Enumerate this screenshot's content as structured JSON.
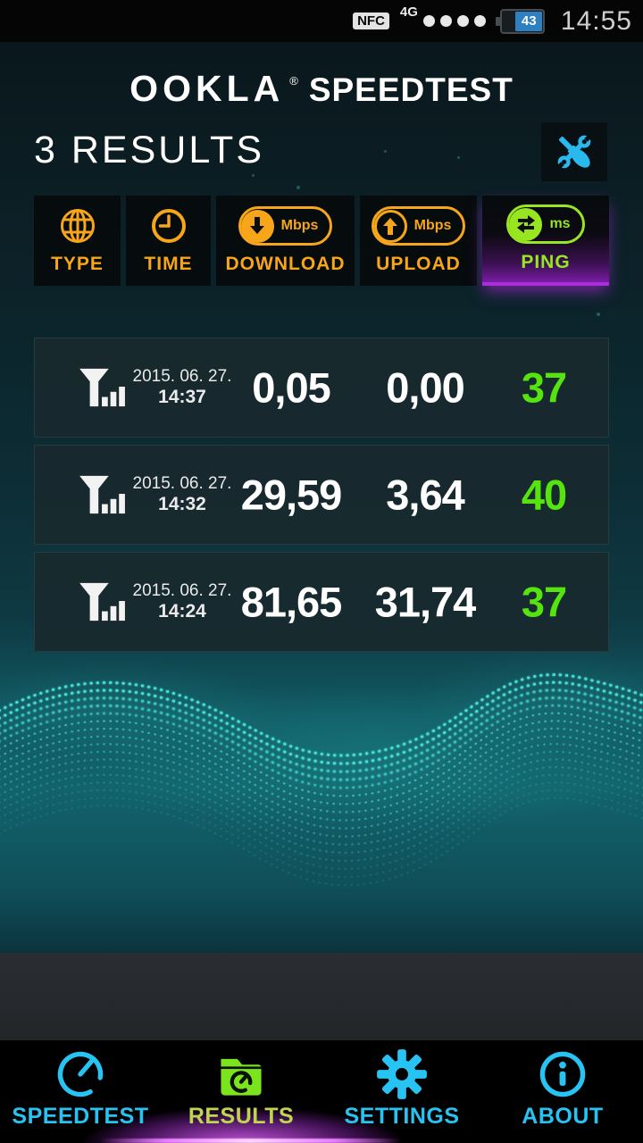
{
  "status_bar": {
    "nfc_label": "NFC",
    "network_label": "4G",
    "signal_dots": 4,
    "battery_percent": "43",
    "time": "14:55"
  },
  "header": {
    "brand": "OOKLA",
    "registered_mark": "®",
    "product": "SPEEDTEST"
  },
  "page": {
    "title": "3 RESULTS",
    "tools_icon": "wrench-screwdriver-icon"
  },
  "sort_bar": {
    "columns": [
      {
        "name": "type",
        "label": "TYPE",
        "icon": "globe-icon"
      },
      {
        "name": "time",
        "label": "TIME",
        "icon": "clock-icon"
      },
      {
        "name": "download",
        "label": "DOWNLOAD",
        "unit": "Mbps",
        "icon": "download-arrow-icon"
      },
      {
        "name": "upload",
        "label": "UPLOAD",
        "unit": "Mbps",
        "icon": "upload-arrow-icon"
      },
      {
        "name": "ping",
        "label": "PING",
        "unit": "ms",
        "icon": "ping-arrows-icon",
        "selected": true
      }
    ]
  },
  "results": [
    {
      "network_icon": "cellular-signal-icon",
      "date": "2015. 06. 27.",
      "time": "14:37",
      "download": "0,05",
      "upload": "0,00",
      "ping": "37"
    },
    {
      "network_icon": "cellular-signal-icon",
      "date": "2015. 06. 27.",
      "time": "14:32",
      "download": "29,59",
      "upload": "3,64",
      "ping": "40"
    },
    {
      "network_icon": "cellular-signal-icon",
      "date": "2015. 06. 27.",
      "time": "14:24",
      "download": "81,65",
      "upload": "31,74",
      "ping": "37"
    }
  ],
  "bottom_nav": {
    "items": [
      {
        "label": "SPEEDTEST",
        "icon": "gauge-icon",
        "active": false
      },
      {
        "label": "RESULTS",
        "icon": "results-folder-icon",
        "active": true
      },
      {
        "label": "SETTINGS",
        "icon": "gear-icon",
        "active": false
      },
      {
        "label": "ABOUT",
        "icon": "info-icon",
        "active": false
      }
    ]
  },
  "colors": {
    "accent_orange": "#f7a519",
    "accent_green_bright": "#55e40e",
    "accent_green_header": "#97e620",
    "accent_cyan": "#27c3f2",
    "accent_purple": "#a92ddc",
    "wave_cyan": "#49e6d8"
  }
}
